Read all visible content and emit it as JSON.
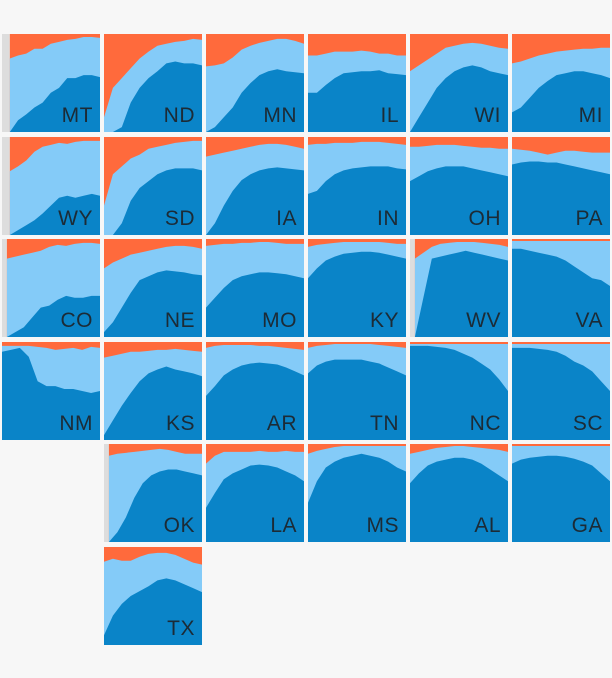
{
  "colors": {
    "background": "#f7f7f7",
    "no_data": "#dddddd",
    "dark_blue": "#0a84c8",
    "light_blue": "#84cbf8",
    "orange": "#ff6a3c",
    "label": "#1c2b36"
  },
  "chart_data": {
    "type": "area",
    "layout": "tile-grid-map",
    "stack_order": [
      "dark_blue",
      "light_blue",
      "orange"
    ],
    "value_unit": "share of tile height (0-1), read along each tile's time axis",
    "tiles": [
      {
        "state": "MT",
        "row": 0,
        "col": 0,
        "nodata": 0.08,
        "a": [
          0.0,
          0.12,
          0.18,
          0.25,
          0.3,
          0.4,
          0.45,
          0.55,
          0.55,
          0.58,
          0.58,
          0.56
        ],
        "b": [
          0.75,
          0.78,
          0.8,
          0.85,
          0.85,
          0.9,
          0.92,
          0.94,
          0.95,
          0.97,
          0.97,
          0.96
        ]
      },
      {
        "state": "ND",
        "row": 0,
        "col": 1,
        "nodata": 0.0,
        "a": [
          0.0,
          0.0,
          0.05,
          0.3,
          0.45,
          0.55,
          0.62,
          0.7,
          0.72,
          0.7,
          0.7,
          0.68
        ],
        "b": [
          0.15,
          0.45,
          0.55,
          0.65,
          0.75,
          0.82,
          0.88,
          0.9,
          0.92,
          0.93,
          0.95,
          0.94
        ]
      },
      {
        "state": "MN",
        "row": 0,
        "col": 2,
        "nodata": 0.0,
        "a": [
          0.0,
          0.05,
          0.15,
          0.25,
          0.4,
          0.5,
          0.58,
          0.62,
          0.64,
          0.62,
          0.61,
          0.6
        ],
        "b": [
          0.67,
          0.68,
          0.7,
          0.76,
          0.84,
          0.88,
          0.91,
          0.93,
          0.95,
          0.95,
          0.93,
          0.9
        ]
      },
      {
        "state": "IL",
        "row": 0,
        "col": 3,
        "nodata": 0.0,
        "a": [
          0.4,
          0.4,
          0.48,
          0.55,
          0.6,
          0.61,
          0.62,
          0.62,
          0.63,
          0.6,
          0.59,
          0.58
        ],
        "b": [
          0.78,
          0.78,
          0.8,
          0.82,
          0.82,
          0.82,
          0.83,
          0.82,
          0.8,
          0.8,
          0.78,
          0.78
        ]
      },
      {
        "state": "WI",
        "row": 0,
        "col": 4,
        "nodata": 0.0,
        "a": [
          0.0,
          0.15,
          0.3,
          0.45,
          0.55,
          0.62,
          0.66,
          0.68,
          0.66,
          0.62,
          0.6,
          0.58
        ],
        "b": [
          0.62,
          0.68,
          0.74,
          0.8,
          0.86,
          0.88,
          0.9,
          0.91,
          0.9,
          0.88,
          0.86,
          0.85
        ]
      },
      {
        "state": "MI",
        "row": 0,
        "col": 5,
        "nodata": 0.0,
        "a": [
          0.2,
          0.25,
          0.35,
          0.45,
          0.52,
          0.58,
          0.6,
          0.62,
          0.62,
          0.6,
          0.58,
          0.55
        ],
        "b": [
          0.7,
          0.72,
          0.75,
          0.78,
          0.8,
          0.82,
          0.83,
          0.84,
          0.85,
          0.85,
          0.86,
          0.86
        ]
      },
      {
        "state": "WY",
        "row": 1,
        "col": 0,
        "nodata": 0.08,
        "a": [
          0.0,
          0.05,
          0.1,
          0.15,
          0.22,
          0.3,
          0.38,
          0.4,
          0.38,
          0.4,
          0.42,
          0.4
        ],
        "b": [
          0.65,
          0.7,
          0.76,
          0.85,
          0.9,
          0.92,
          0.94,
          0.93,
          0.95,
          0.96,
          0.96,
          0.96
        ]
      },
      {
        "state": "SD",
        "row": 1,
        "col": 1,
        "nodata": 0.0,
        "a": [
          0.0,
          0.0,
          0.12,
          0.35,
          0.48,
          0.55,
          0.62,
          0.66,
          0.68,
          0.68,
          0.68,
          0.66
        ],
        "b": [
          0.3,
          0.62,
          0.7,
          0.78,
          0.82,
          0.88,
          0.9,
          0.92,
          0.94,
          0.95,
          0.96,
          0.96
        ]
      },
      {
        "state": "IA",
        "row": 1,
        "col": 2,
        "nodata": 0.0,
        "a": [
          0.0,
          0.12,
          0.3,
          0.45,
          0.56,
          0.62,
          0.66,
          0.68,
          0.69,
          0.68,
          0.67,
          0.66
        ],
        "b": [
          0.8,
          0.82,
          0.84,
          0.86,
          0.88,
          0.9,
          0.92,
          0.93,
          0.93,
          0.92,
          0.9,
          0.88
        ]
      },
      {
        "state": "IN",
        "row": 1,
        "col": 3,
        "nodata": 0.0,
        "a": [
          0.42,
          0.45,
          0.55,
          0.62,
          0.66,
          0.68,
          0.69,
          0.7,
          0.7,
          0.7,
          0.68,
          0.67
        ],
        "b": [
          0.92,
          0.93,
          0.93,
          0.94,
          0.94,
          0.94,
          0.95,
          0.95,
          0.95,
          0.94,
          0.93,
          0.92
        ]
      },
      {
        "state": "OH",
        "row": 1,
        "col": 4,
        "nodata": 0.0,
        "a": [
          0.55,
          0.6,
          0.65,
          0.68,
          0.7,
          0.7,
          0.7,
          0.68,
          0.66,
          0.64,
          0.62,
          0.6
        ],
        "b": [
          0.9,
          0.9,
          0.91,
          0.92,
          0.92,
          0.92,
          0.91,
          0.9,
          0.89,
          0.89,
          0.88,
          0.88
        ]
      },
      {
        "state": "PA",
        "row": 1,
        "col": 5,
        "nodata": 0.0,
        "a": [
          0.72,
          0.74,
          0.75,
          0.75,
          0.74,
          0.74,
          0.72,
          0.7,
          0.68,
          0.66,
          0.64,
          0.62
        ],
        "b": [
          0.88,
          0.87,
          0.86,
          0.84,
          0.82,
          0.84,
          0.86,
          0.86,
          0.85,
          0.84,
          0.84,
          0.84
        ]
      },
      {
        "state": "CO",
        "row": 2,
        "col": 0,
        "nodata": 0.05,
        "a": [
          0.0,
          0.05,
          0.1,
          0.2,
          0.3,
          0.32,
          0.38,
          0.42,
          0.4,
          0.4,
          0.42,
          0.42
        ],
        "b": [
          0.8,
          0.82,
          0.84,
          0.86,
          0.88,
          0.92,
          0.94,
          0.93,
          0.95,
          0.96,
          0.96,
          0.95
        ]
      },
      {
        "state": "NE",
        "row": 2,
        "col": 1,
        "nodata": 0.0,
        "a": [
          0.05,
          0.15,
          0.3,
          0.45,
          0.58,
          0.62,
          0.66,
          0.68,
          0.67,
          0.66,
          0.64,
          0.63
        ],
        "b": [
          0.7,
          0.76,
          0.8,
          0.84,
          0.86,
          0.88,
          0.9,
          0.92,
          0.93,
          0.93,
          0.92,
          0.9
        ]
      },
      {
        "state": "MO",
        "row": 2,
        "col": 2,
        "nodata": 0.0,
        "a": [
          0.3,
          0.4,
          0.5,
          0.58,
          0.62,
          0.64,
          0.66,
          0.66,
          0.65,
          0.64,
          0.62,
          0.6
        ],
        "b": [
          0.93,
          0.94,
          0.95,
          0.95,
          0.96,
          0.96,
          0.97,
          0.97,
          0.96,
          0.95,
          0.95,
          0.95
        ]
      },
      {
        "state": "KY",
        "row": 2,
        "col": 3,
        "nodata": 0.0,
        "a": [
          0.6,
          0.7,
          0.78,
          0.82,
          0.85,
          0.86,
          0.87,
          0.87,
          0.86,
          0.84,
          0.82,
          0.8
        ],
        "b": [
          0.92,
          0.94,
          0.95,
          0.96,
          0.97,
          0.97,
          0.97,
          0.97,
          0.97,
          0.96,
          0.95,
          0.95
        ]
      },
      {
        "state": "WV",
        "row": 2,
        "col": 4,
        "nodata": 0.05,
        "a": [
          0.0,
          0.4,
          0.8,
          0.82,
          0.84,
          0.86,
          0.88,
          0.86,
          0.84,
          0.82,
          0.8,
          0.78
        ],
        "b": [
          0.8,
          0.86,
          0.92,
          0.95,
          0.96,
          0.97,
          0.97,
          0.97,
          0.96,
          0.95,
          0.94,
          0.92
        ]
      },
      {
        "state": "VA",
        "row": 2,
        "col": 5,
        "nodata": 0.0,
        "a": [
          0.9,
          0.9,
          0.88,
          0.86,
          0.84,
          0.82,
          0.78,
          0.72,
          0.66,
          0.6,
          0.58,
          0.52
        ],
        "b": [
          0.98,
          0.98,
          0.98,
          0.98,
          0.98,
          0.98,
          0.98,
          0.98,
          0.98,
          0.98,
          0.98,
          0.98
        ]
      },
      {
        "state": "NM",
        "row": 3,
        "col": 0,
        "nodata": 0.0,
        "a": [
          0.9,
          0.92,
          0.94,
          0.85,
          0.6,
          0.55,
          0.55,
          0.52,
          0.52,
          0.5,
          0.48,
          0.5
        ],
        "b": [
          0.96,
          0.96,
          0.96,
          0.96,
          0.95,
          0.94,
          0.92,
          0.93,
          0.94,
          0.92,
          0.95,
          0.94
        ]
      },
      {
        "state": "KS",
        "row": 3,
        "col": 1,
        "nodata": 0.0,
        "a": [
          0.05,
          0.2,
          0.35,
          0.48,
          0.6,
          0.68,
          0.72,
          0.75,
          0.72,
          0.7,
          0.68,
          0.65
        ],
        "b": [
          0.84,
          0.86,
          0.88,
          0.9,
          0.9,
          0.91,
          0.92,
          0.92,
          0.93,
          0.92,
          0.91,
          0.9
        ]
      },
      {
        "state": "AR",
        "row": 3,
        "col": 2,
        "nodata": 0.0,
        "a": [
          0.45,
          0.55,
          0.66,
          0.72,
          0.76,
          0.78,
          0.79,
          0.78,
          0.77,
          0.74,
          0.7,
          0.66
        ],
        "b": [
          0.94,
          0.96,
          0.97,
          0.97,
          0.97,
          0.97,
          0.96,
          0.96,
          0.95,
          0.94,
          0.93,
          0.92
        ]
      },
      {
        "state": "TN",
        "row": 3,
        "col": 3,
        "nodata": 0.0,
        "a": [
          0.68,
          0.76,
          0.8,
          0.82,
          0.82,
          0.82,
          0.82,
          0.8,
          0.78,
          0.74,
          0.7,
          0.66
        ],
        "b": [
          0.94,
          0.96,
          0.97,
          0.98,
          0.98,
          0.98,
          0.98,
          0.98,
          0.97,
          0.96,
          0.95,
          0.94
        ]
      },
      {
        "state": "NC",
        "row": 3,
        "col": 4,
        "nodata": 0.0,
        "a": [
          0.96,
          0.96,
          0.96,
          0.95,
          0.94,
          0.92,
          0.88,
          0.84,
          0.78,
          0.72,
          0.62,
          0.5
        ],
        "b": [
          0.98,
          0.98,
          0.98,
          0.98,
          0.98,
          0.98,
          0.98,
          0.98,
          0.98,
          0.98,
          0.98,
          0.98
        ]
      },
      {
        "state": "SC",
        "row": 3,
        "col": 5,
        "nodata": 0.0,
        "a": [
          0.94,
          0.94,
          0.94,
          0.93,
          0.92,
          0.9,
          0.86,
          0.8,
          0.76,
          0.7,
          0.6,
          0.5
        ],
        "b": [
          0.98,
          0.98,
          0.98,
          0.98,
          0.98,
          0.98,
          0.98,
          0.98,
          0.98,
          0.98,
          0.98,
          0.98
        ]
      },
      {
        "state": "OK",
        "row": 4,
        "col": 1,
        "nodata": 0.05,
        "a": [
          0.0,
          0.1,
          0.25,
          0.45,
          0.6,
          0.68,
          0.72,
          0.74,
          0.74,
          0.72,
          0.7,
          0.68
        ],
        "b": [
          0.88,
          0.9,
          0.91,
          0.92,
          0.93,
          0.94,
          0.95,
          0.94,
          0.92,
          0.9,
          0.9,
          0.9
        ]
      },
      {
        "state": "LA",
        "row": 4,
        "col": 2,
        "nodata": 0.0,
        "a": [
          0.35,
          0.5,
          0.64,
          0.7,
          0.74,
          0.78,
          0.79,
          0.78,
          0.76,
          0.72,
          0.68,
          0.62
        ],
        "b": [
          0.8,
          0.88,
          0.92,
          0.92,
          0.92,
          0.92,
          0.93,
          0.92,
          0.92,
          0.93,
          0.92,
          0.92
        ]
      },
      {
        "state": "MS",
        "row": 4,
        "col": 3,
        "nodata": 0.0,
        "a": [
          0.4,
          0.62,
          0.76,
          0.82,
          0.86,
          0.88,
          0.9,
          0.88,
          0.86,
          0.82,
          0.76,
          0.72
        ],
        "b": [
          0.9,
          0.93,
          0.95,
          0.97,
          0.98,
          0.98,
          0.98,
          0.98,
          0.98,
          0.98,
          0.98,
          0.98
        ]
      },
      {
        "state": "AL",
        "row": 4,
        "col": 4,
        "nodata": 0.0,
        "a": [
          0.6,
          0.7,
          0.78,
          0.82,
          0.84,
          0.86,
          0.86,
          0.84,
          0.8,
          0.74,
          0.68,
          0.62
        ],
        "b": [
          0.9,
          0.92,
          0.94,
          0.96,
          0.97,
          0.98,
          0.98,
          0.97,
          0.96,
          0.95,
          0.94,
          0.92
        ]
      },
      {
        "state": "GA",
        "row": 4,
        "col": 5,
        "nodata": 0.0,
        "a": [
          0.8,
          0.84,
          0.86,
          0.87,
          0.88,
          0.88,
          0.87,
          0.85,
          0.82,
          0.78,
          0.7,
          0.62
        ],
        "b": [
          0.98,
          0.98,
          0.98,
          0.98,
          0.98,
          0.98,
          0.98,
          0.98,
          0.98,
          0.98,
          0.98,
          0.98
        ]
      },
      {
        "state": "TX",
        "row": 5,
        "col": 1,
        "nodata": 0.0,
        "a": [
          0.1,
          0.3,
          0.42,
          0.5,
          0.55,
          0.6,
          0.66,
          0.68,
          0.66,
          0.62,
          0.58,
          0.54
        ],
        "b": [
          0.85,
          0.88,
          0.86,
          0.86,
          0.9,
          0.93,
          0.94,
          0.94,
          0.92,
          0.88,
          0.84,
          0.82
        ]
      }
    ]
  }
}
